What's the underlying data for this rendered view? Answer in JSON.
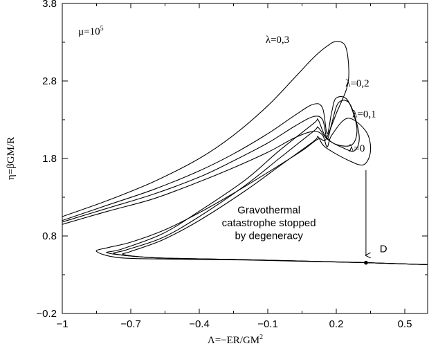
{
  "chart_data": {
    "type": "line",
    "xlabel": "Λ=−ER/GM",
    "xlabel_sup": "2",
    "ylabel": "η=βGM/R",
    "xlim": [
      -1,
      0.6
    ],
    "ylim": [
      -0.2,
      3.8
    ],
    "xticks": [
      -1,
      -0.7,
      -0.4,
      -0.1,
      0.2,
      0.5
    ],
    "xtick_labels": [
      "−1",
      "−0.7",
      "−0.4",
      "−0.1",
      "0.2",
      "0.5"
    ],
    "yticks": [
      -0.2,
      0.8,
      1.8,
      2.8,
      3.8
    ],
    "ytick_labels": [
      "−0.2",
      "0.8",
      "1.8",
      "2.8",
      "3.8"
    ],
    "grid": false,
    "param_label": {
      "base": "μ=10",
      "sup": "5",
      "x": -0.93,
      "y": 3.4
    },
    "series": [
      {
        "name": "λ=0",
        "label_pos": {
          "x": 0.255,
          "y": 1.89
        },
        "points": [
          [
            -1,
            0.95
          ],
          [
            -0.8,
            1.12
          ],
          [
            -0.6,
            1.28
          ],
          [
            -0.4,
            1.5
          ],
          [
            -0.25,
            1.68
          ],
          [
            -0.1,
            1.88
          ],
          [
            0.02,
            2.07
          ],
          [
            0.1,
            2.15
          ],
          [
            0.14,
            2.1
          ],
          [
            0.16,
            1.95
          ],
          [
            0.18,
            2.1
          ],
          [
            0.25,
            2.32
          ],
          [
            0.33,
            2.15
          ],
          [
            0.35,
            1.9
          ],
          [
            0.32,
            1.72
          ],
          [
            0.25,
            1.78
          ],
          [
            0.15,
            1.95
          ],
          [
            0.12,
            2.08
          ],
          [
            0.1,
            2.02
          ],
          [
            -0.05,
            1.7
          ],
          [
            -0.2,
            1.38
          ],
          [
            -0.4,
            1.0
          ],
          [
            -0.56,
            0.75
          ],
          [
            -0.7,
            0.6
          ],
          [
            -0.73,
            0.56
          ],
          [
            -0.6,
            0.52
          ],
          [
            -0.3,
            0.5
          ],
          [
            0,
            0.48
          ],
          [
            0.33,
            0.455
          ],
          [
            0.6,
            0.43
          ]
        ]
      },
      {
        "name": "λ=0,1",
        "label_pos": {
          "x": 0.27,
          "y": 2.33
        },
        "points": [
          [
            -1,
            0.98
          ],
          [
            -0.8,
            1.16
          ],
          [
            -0.6,
            1.34
          ],
          [
            -0.4,
            1.56
          ],
          [
            -0.25,
            1.77
          ],
          [
            -0.1,
            2.0
          ],
          [
            0.02,
            2.22
          ],
          [
            0.1,
            2.34
          ],
          [
            0.14,
            2.3
          ],
          [
            0.16,
            2.05
          ],
          [
            0.18,
            2.25
          ],
          [
            0.21,
            2.52
          ],
          [
            0.26,
            2.5
          ],
          [
            0.3,
            2.1
          ],
          [
            0.28,
            1.9
          ],
          [
            0.22,
            1.95
          ],
          [
            0.16,
            2.05
          ],
          [
            0.12,
            2.2
          ],
          [
            0.1,
            2.15
          ],
          [
            -0.05,
            1.8
          ],
          [
            -0.2,
            1.45
          ],
          [
            -0.4,
            1.05
          ],
          [
            -0.56,
            0.78
          ],
          [
            -0.72,
            0.62
          ],
          [
            -0.77,
            0.57
          ],
          [
            -0.6,
            0.52
          ],
          [
            -0.3,
            0.5
          ],
          [
            0,
            0.48
          ],
          [
            0.33,
            0.455
          ],
          [
            0.6,
            0.43
          ]
        ]
      },
      {
        "name": "λ=0,2",
        "label_pos": {
          "x": 0.24,
          "y": 2.73
        },
        "points": [
          [
            -1,
            1.0
          ],
          [
            -0.8,
            1.2
          ],
          [
            -0.6,
            1.4
          ],
          [
            -0.4,
            1.64
          ],
          [
            -0.25,
            1.86
          ],
          [
            -0.1,
            2.12
          ],
          [
            0.02,
            2.36
          ],
          [
            0.1,
            2.5
          ],
          [
            0.14,
            2.45
          ],
          [
            0.16,
            2.12
          ],
          [
            0.18,
            2.4
          ],
          [
            0.2,
            2.58
          ],
          [
            0.25,
            2.55
          ],
          [
            0.29,
            2.2
          ],
          [
            0.27,
            1.98
          ],
          [
            0.2,
            1.98
          ],
          [
            0.15,
            2.1
          ],
          [
            0.12,
            2.3
          ],
          [
            0.1,
            2.25
          ],
          [
            -0.05,
            1.9
          ],
          [
            -0.2,
            1.52
          ],
          [
            -0.4,
            1.12
          ],
          [
            -0.56,
            0.83
          ],
          [
            -0.74,
            0.63
          ],
          [
            -0.8,
            0.58
          ],
          [
            -0.6,
            0.52
          ],
          [
            -0.3,
            0.5
          ],
          [
            0,
            0.48
          ],
          [
            0.33,
            0.455
          ],
          [
            0.6,
            0.43
          ]
        ]
      },
      {
        "name": "λ=0,3",
        "label_pos": {
          "x": -0.11,
          "y": 3.29
        },
        "points": [
          [
            -1,
            1.05
          ],
          [
            -0.8,
            1.26
          ],
          [
            -0.6,
            1.5
          ],
          [
            -0.4,
            1.8
          ],
          [
            -0.25,
            2.1
          ],
          [
            -0.1,
            2.48
          ],
          [
            0.02,
            2.85
          ],
          [
            0.1,
            3.1
          ],
          [
            0.16,
            3.25
          ],
          [
            0.2,
            3.31
          ],
          [
            0.24,
            3.25
          ],
          [
            0.255,
            2.95
          ],
          [
            0.245,
            2.7
          ],
          [
            0.2,
            2.38
          ],
          [
            0.17,
            2.15
          ],
          [
            0.15,
            2.03
          ],
          [
            0.12,
            2.05
          ],
          [
            0.05,
            1.9
          ],
          [
            -0.1,
            1.62
          ],
          [
            -0.25,
            1.35
          ],
          [
            -0.4,
            1.1
          ],
          [
            -0.55,
            0.88
          ],
          [
            -0.7,
            0.72
          ],
          [
            -0.8,
            0.65
          ],
          [
            -0.85,
            0.6
          ],
          [
            -0.75,
            0.52
          ],
          [
            -0.5,
            0.5
          ],
          [
            -0.2,
            0.49
          ],
          [
            0.1,
            0.47
          ],
          [
            0.33,
            0.455
          ],
          [
            0.6,
            0.43
          ]
        ]
      }
    ],
    "point_D": {
      "label": "D",
      "x": 0.33,
      "y": 0.455,
      "label_x": 0.39,
      "label_y": 0.59
    },
    "arrow": {
      "x": 0.33,
      "y_start": 1.65,
      "y_end": 0.55
    },
    "annotation": {
      "lines": [
        "Gravothermal",
        "catastrophe stopped",
        "by degeneracy"
      ],
      "x": -0.095,
      "y": 1.09,
      "line_dy": 0.165
    }
  }
}
